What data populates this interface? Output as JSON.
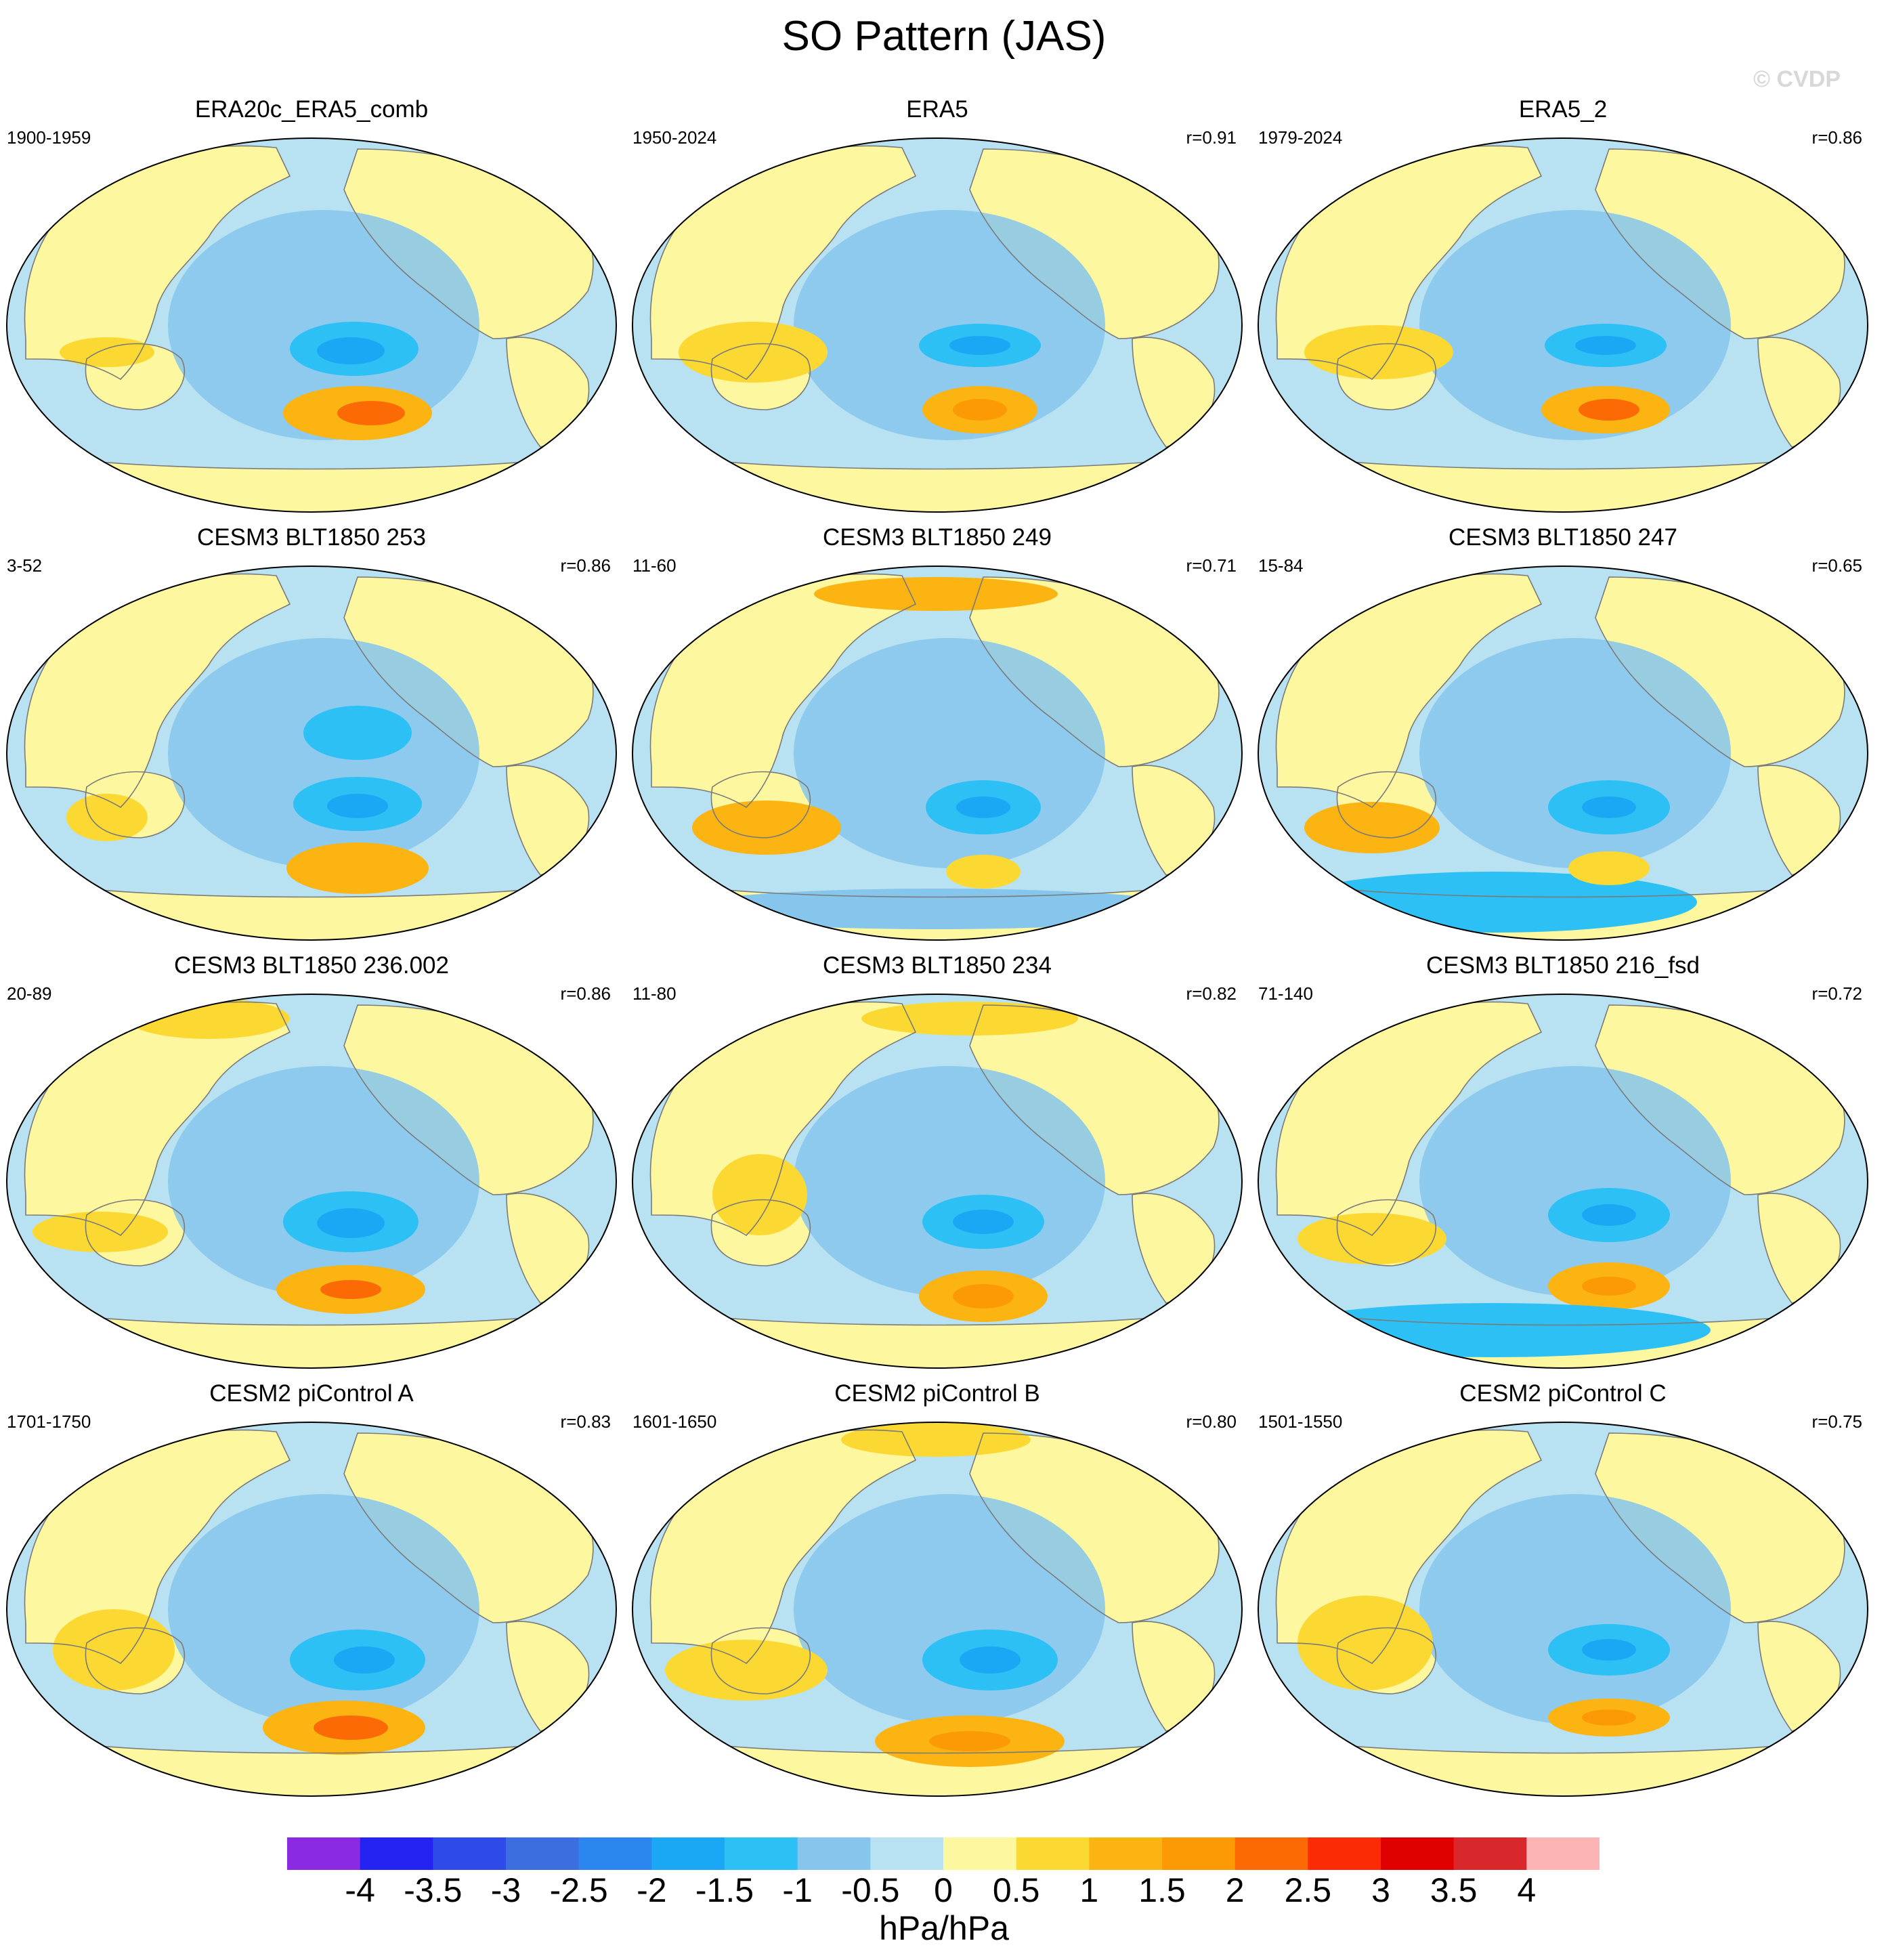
{
  "title": "SO Pattern (JAS)",
  "credit": "© CVDP",
  "panels": [
    {
      "title": "ERA20c_ERA5_comb",
      "period": "1900-1959",
      "r": ""
    },
    {
      "title": "ERA5",
      "period": "1950-2024",
      "r": "r=0.91"
    },
    {
      "title": "ERA5_2",
      "period": "1979-2024",
      "r": "r=0.86"
    },
    {
      "title": "CESM3 BLT1850 253",
      "period": "3-52",
      "r": "r=0.86"
    },
    {
      "title": "CESM3 BLT1850 249",
      "period": "11-60",
      "r": "r=0.71"
    },
    {
      "title": "CESM3 BLT1850 247",
      "period": "15-84",
      "r": "r=0.65"
    },
    {
      "title": "CESM3 BLT1850 236.002",
      "period": "20-89",
      "r": "r=0.86"
    },
    {
      "title": "CESM3 BLT1850 234",
      "period": "11-80",
      "r": "r=0.82"
    },
    {
      "title": "CESM3 BLT1850 216_fsd",
      "period": "71-140",
      "r": "r=0.72"
    },
    {
      "title": "CESM2 piControl A",
      "period": "1701-1750",
      "r": "r=0.83"
    },
    {
      "title": "CESM2 piControl B",
      "period": "1601-1650",
      "r": "r=0.80"
    },
    {
      "title": "CESM2 piControl C",
      "period": "1501-1550",
      "r": "r=0.75"
    }
  ],
  "colorbar": {
    "units": "hPa/hPa",
    "tick_labels": [
      "-4",
      "-3.5",
      "-3",
      "-2.5",
      "-2",
      "-1.5",
      "-1",
      "-0.5",
      "0",
      "0.5",
      "1",
      "1.5",
      "2",
      "2.5",
      "3",
      "3.5",
      "4"
    ],
    "colors": [
      "#8a2be2",
      "#2424f2",
      "#2e4ae8",
      "#3c6ee0",
      "#2c86f0",
      "#1aa8f5",
      "#2cc0f5",
      "#86c6ec",
      "#b8e2f2",
      "#fdf7a0",
      "#fcd932",
      "#fbb412",
      "#fc9a05",
      "#fc6a05",
      "#fc2a05",
      "#e00000",
      "#d8282c",
      "#fcb4b4"
    ]
  },
  "map_colors": {
    "ocean": "#b8e2f2",
    "land": "#fdf7a0",
    "neg_1": "#86c6ec",
    "neg_2": "#2cc0f5",
    "neg_3": "#1aa8f5",
    "neg_4": "#2c86f0",
    "pos_1": "#fcd932",
    "pos_2": "#fbb412",
    "pos_3": "#fc9a05",
    "pos_4": "#fc6a05",
    "pos_5": "#e00000",
    "coast": "#7a7a7a"
  }
}
